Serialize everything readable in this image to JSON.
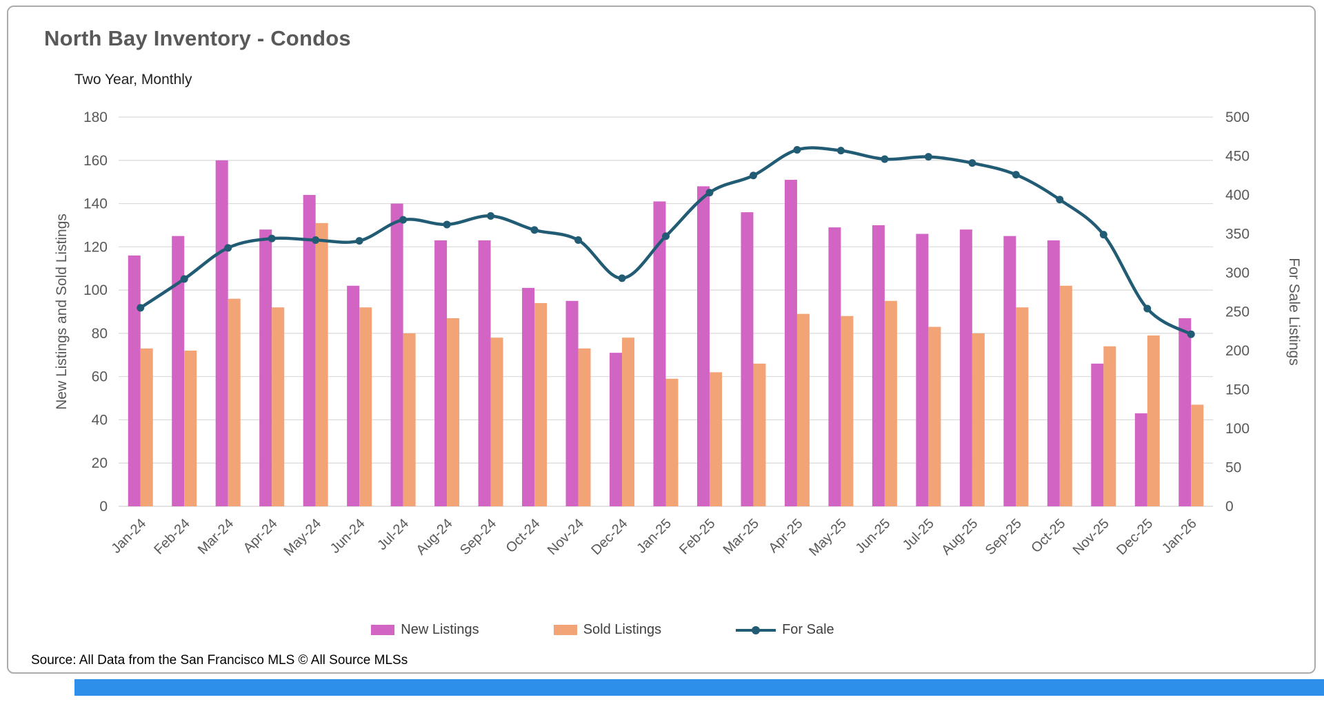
{
  "page": {
    "bottom_bar_color": "#2E8FEA"
  },
  "chart_data": {
    "type": "combo-bar-line",
    "title": "North Bay Inventory - Condos",
    "subtitle": "Two Year, Monthly",
    "source": "Source: All Data from the San Francisco MLS © All Source MLSs",
    "categories": [
      "Jan-24",
      "Feb-24",
      "Mar-24",
      "Apr-24",
      "May-24",
      "Jun-24",
      "Jul-24",
      "Aug-24",
      "Sep-24",
      "Oct-24",
      "Nov-24",
      "Dec-24",
      "Jan-25",
      "Feb-25",
      "Mar-25",
      "Apr-25",
      "May-25",
      "Jun-25",
      "Jul-25",
      "Aug-25",
      "Sep-25",
      "Oct-25",
      "Nov-25",
      "Dec-25",
      "Jan-26"
    ],
    "series": [
      {
        "name": "New Listings",
        "type": "bar",
        "axis": "left",
        "color": "#D264C4",
        "values": [
          116,
          125,
          160,
          128,
          144,
          102,
          140,
          123,
          123,
          101,
          95,
          71,
          141,
          148,
          136,
          151,
          129,
          130,
          126,
          128,
          125,
          123,
          66,
          43,
          87
        ]
      },
      {
        "name": "Sold Listings",
        "type": "bar",
        "axis": "left",
        "color": "#F2A477",
        "values": [
          73,
          72,
          96,
          92,
          131,
          92,
          80,
          87,
          78,
          94,
          73,
          78,
          59,
          62,
          66,
          89,
          88,
          95,
          83,
          80,
          92,
          102,
          74,
          79,
          47
        ]
      },
      {
        "name": "For Sale",
        "type": "line",
        "axis": "right",
        "color": "#215C74",
        "values": [
          255,
          292,
          332,
          344,
          342,
          341,
          368,
          362,
          373,
          355,
          342,
          293,
          347,
          403,
          425,
          458,
          457,
          446,
          449,
          441,
          426,
          394,
          349,
          254,
          221
        ]
      }
    ],
    "y1": {
      "label": "New Listings and Sold Listings",
      "min": 0,
      "max": 180,
      "step": 20
    },
    "y2": {
      "label": "For Sale Listings",
      "min": 0,
      "max": 500,
      "step": 50
    },
    "grid": true,
    "legend_position": "bottom",
    "colors": {
      "grid": "#D9D9D9",
      "axis_text": "#595959"
    }
  }
}
